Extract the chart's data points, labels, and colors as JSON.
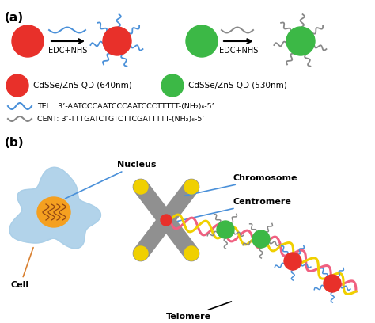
{
  "bg_color": "#ffffff",
  "panel_a_label": "(a)",
  "panel_b_label": "(b)",
  "red_color": "#e8302a",
  "green_color": "#3cb846",
  "blue_line_color": "#4a90d9",
  "gray_line_color": "#888888",
  "edc_nhs_text": "EDC+NHS",
  "red_qd_label": "CdSSe/ZnS QD (640nm)",
  "green_qd_label": "CdSSe/ZnS QD (530nm)",
  "tel_label": "TEL:  3’-AATCCCAATCCCAATCCCTTTTT-(NH₂)₆-5’",
  "cent_label": "CENT: 3’-TTTGATCTGTCTTCGATTTTT-(NH₂)₆-5’",
  "nucleus_label": "Nucleus",
  "cell_label": "Cell",
  "chromosome_label": "Chromosome",
  "centromere_label": "Centromere",
  "telomere_label": "Telomere",
  "cell_color": "#aacfe8",
  "nucleus_color": "#f5a020",
  "chromosome_color": "#909090",
  "yellow_color": "#f0d000",
  "dna_pink": "#f06080",
  "dna_yellow": "#f0d000",
  "dna_blue": "#4a90d9",
  "dna_orange": "#f5a020",
  "annotation_line_color": "#4a90d9",
  "cell_annotation_color": "#d98030"
}
